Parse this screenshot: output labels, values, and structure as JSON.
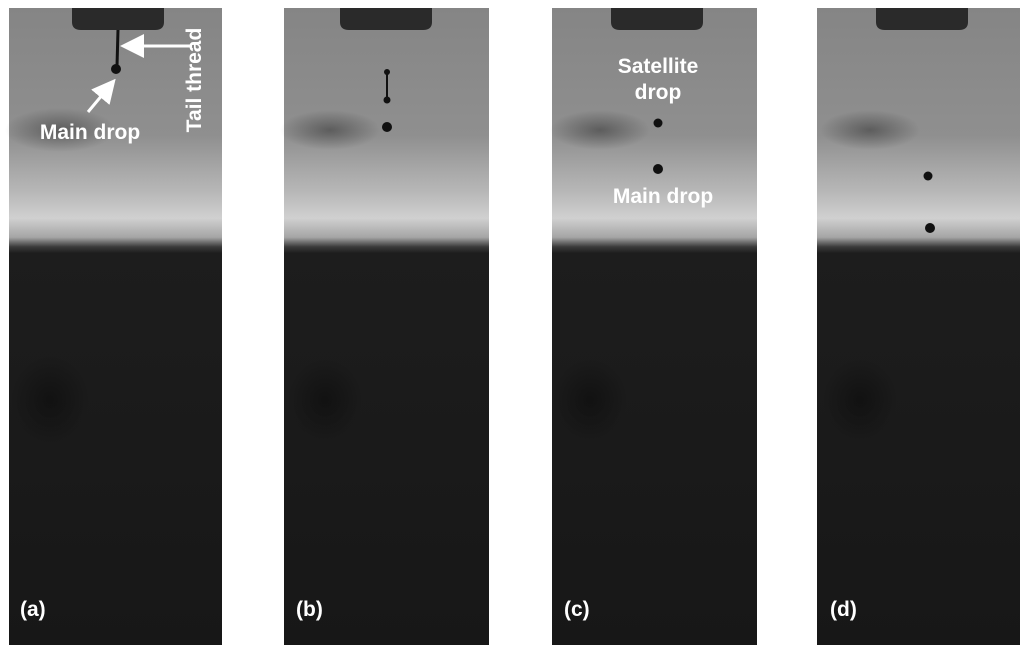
{
  "panels": [
    {
      "label": "(a)",
      "annotations": [
        "Main drop",
        "Tail thread"
      ]
    },
    {
      "label": "(b)"
    },
    {
      "label": "(c)",
      "annotations": [
        "Satellite drop",
        "Main drop"
      ]
    },
    {
      "label": "(d)"
    }
  ]
}
